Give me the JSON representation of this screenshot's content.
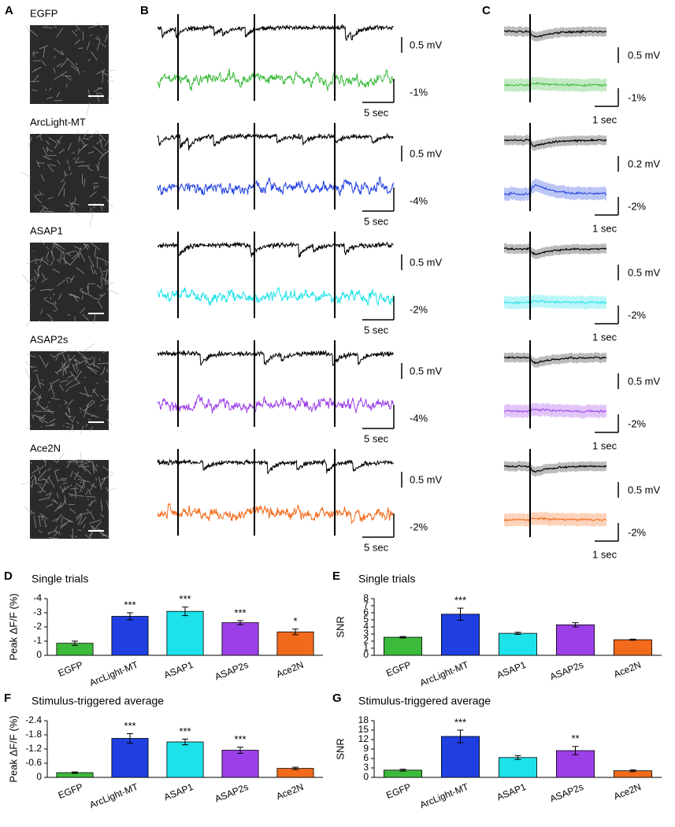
{
  "panel_labels": [
    "A",
    "B",
    "C"
  ],
  "sensors": [
    "EGFP",
    "ArcLight-MT",
    "ASAP1",
    "ASAP2s",
    "Ace2N"
  ],
  "sensor_colors": [
    "#3cba3c",
    "#1f3fe0",
    "#1ee2ea",
    "#9b3fe8",
    "#f26a1b"
  ],
  "panel_b": {
    "rows": [
      {
        "voltage_scale": "0.5 mV",
        "fluorescence_scale": "-1%",
        "time_scale": "5 sec"
      },
      {
        "voltage_scale": "0.5 mV",
        "fluorescence_scale": "-4%",
        "time_scale": "5 sec"
      },
      {
        "voltage_scale": "0.5 mV",
        "fluorescence_scale": "-2%",
        "time_scale": "5 sec"
      },
      {
        "voltage_scale": "0.5 mV",
        "fluorescence_scale": "-4%",
        "time_scale": "5 sec"
      },
      {
        "voltage_scale": "0.5 mV",
        "fluorescence_scale": "-2%",
        "time_scale": "5 sec"
      }
    ]
  },
  "panel_c": {
    "rows": [
      {
        "voltage_scale": "0.5 mV",
        "fluorescence_scale": "-1%",
        "time_scale": "1 sec"
      },
      {
        "voltage_scale": "0.2 mV",
        "fluorescence_scale": "-2%",
        "time_scale": "1 sec"
      },
      {
        "voltage_scale": "0.5 mV",
        "fluorescence_scale": "-2%",
        "time_scale": "1 sec"
      },
      {
        "voltage_scale": "0.5 mV",
        "fluorescence_scale": "-2%",
        "time_scale": "1 sec"
      },
      {
        "voltage_scale": "0.5 mV",
        "fluorescence_scale": "-2%",
        "time_scale": "1 sec"
      }
    ]
  },
  "chart_data": [
    {
      "type": "bar",
      "label": "D",
      "title": "Single trials",
      "ylabel": "Peak ΔF/F (%)",
      "categories": [
        "EGFP",
        "ArcLight-MT",
        "ASAP1",
        "ASAP2s",
        "Ace2N"
      ],
      "values": [
        -0.85,
        -2.75,
        -3.1,
        -2.3,
        -1.65
      ],
      "errors": [
        0.15,
        0.25,
        0.3,
        0.15,
        0.2
      ],
      "significance": [
        null,
        "***",
        "***",
        "***",
        "*"
      ],
      "colors": [
        "#3cba3c",
        "#1f3fe0",
        "#1ee2ea",
        "#9b3fe8",
        "#f26a1b"
      ],
      "ylim": [
        0,
        -4
      ],
      "yticks": [
        0,
        -1,
        -2,
        -3,
        -4
      ]
    },
    {
      "type": "bar",
      "label": "E",
      "title": "Single trials",
      "ylabel": "SNR",
      "categories": [
        "EGFP",
        "ArcLight-MT",
        "ASAP1",
        "ASAP2s",
        "Ace2N"
      ],
      "values": [
        2.55,
        5.8,
        3.1,
        4.3,
        2.2
      ],
      "errors": [
        0.1,
        0.85,
        0.15,
        0.3,
        0.08
      ],
      "significance": [
        null,
        "***",
        null,
        null,
        null
      ],
      "colors": [
        "#3cba3c",
        "#1f3fe0",
        "#1ee2ea",
        "#9b3fe8",
        "#f26a1b"
      ],
      "ylim": [
        0,
        8
      ],
      "yticks": [
        0,
        1,
        2,
        3,
        4,
        5,
        6,
        7,
        8
      ]
    },
    {
      "type": "bar",
      "label": "F",
      "title": "Stimulus-triggered average",
      "ylabel": "Peak ΔF/F (%)",
      "categories": [
        "EGFP",
        "ArcLight-MT",
        "ASAP1",
        "ASAP2s",
        "Ace2N"
      ],
      "values": [
        -0.2,
        -1.65,
        -1.5,
        -1.15,
        -0.38
      ],
      "errors": [
        0.03,
        0.2,
        0.12,
        0.13,
        0.05
      ],
      "significance": [
        null,
        "***",
        "***",
        "***",
        null
      ],
      "colors": [
        "#3cba3c",
        "#1f3fe0",
        "#1ee2ea",
        "#9b3fe8",
        "#f26a1b"
      ],
      "ylim": [
        0,
        -2.4
      ],
      "yticks": [
        0,
        -0.6,
        -1.2,
        -1.8,
        -2.4
      ]
    },
    {
      "type": "bar",
      "label": "G",
      "title": "Stimulus-triggered average",
      "ylabel": "SNR",
      "categories": [
        "EGFP",
        "ArcLight-MT",
        "ASAP1",
        "ASAP2s",
        "Ace2N"
      ],
      "values": [
        2.3,
        13,
        6.3,
        8.5,
        2.1
      ],
      "errors": [
        0.3,
        2,
        0.6,
        1.3,
        0.3
      ],
      "significance": [
        null,
        "***",
        null,
        "**",
        null
      ],
      "colors": [
        "#3cba3c",
        "#1f3fe0",
        "#1ee2ea",
        "#9b3fe8",
        "#f26a1b"
      ],
      "ylim": [
        0,
        18
      ],
      "yticks": [
        0,
        3,
        6,
        9,
        12,
        15,
        18
      ]
    }
  ]
}
